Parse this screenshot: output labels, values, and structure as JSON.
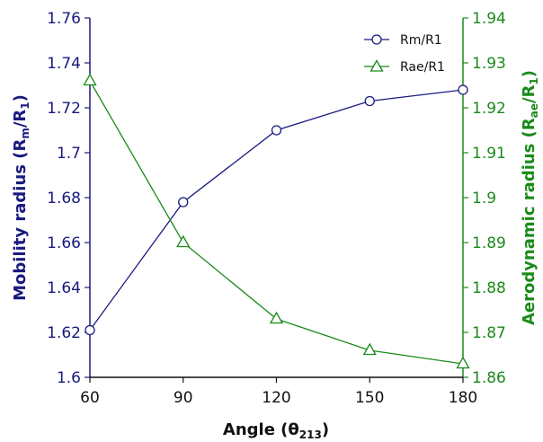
{
  "chart_data": {
    "type": "line",
    "x": [
      60,
      90,
      120,
      150,
      180
    ],
    "xlim": [
      60,
      180
    ],
    "x_ticks": [
      "60",
      "90",
      "120",
      "150",
      "180"
    ],
    "xlabel": {
      "main": "Angle (θ",
      "sub": "213",
      "end": ")"
    },
    "ylabel_left": {
      "main": "Mobility radius (R",
      "sub1": "m",
      "mid": "/R",
      "sub2": "1",
      "end": ")"
    },
    "ylabel_right": {
      "main": "Aerodynamic radius (R",
      "sub1": "ae",
      "mid": "/R",
      "sub2": "1",
      "end": ")"
    },
    "ylim_left": [
      1.6,
      1.76
    ],
    "ylim_right": [
      1.86,
      1.94
    ],
    "y_ticks_left": [
      "1.6",
      "1.62",
      "1.64",
      "1.66",
      "1.68",
      "1.7",
      "1.72",
      "1.74",
      "1.76"
    ],
    "y_ticks_right": [
      "1.86",
      "1.87",
      "1.88",
      "1.89",
      "1.9",
      "1.91",
      "1.92",
      "1.93",
      "1.94"
    ],
    "legend_position": "top-right",
    "grid": false,
    "series": [
      {
        "name": "Rm/R1",
        "axis": "left",
        "marker": "circle",
        "color": "#1a1a80",
        "values": [
          1.621,
          1.678,
          1.71,
          1.723,
          1.728
        ]
      },
      {
        "name": "Rae/R1",
        "axis": "right",
        "marker": "triangle",
        "color": "#1a8a1a",
        "values": [
          1.926,
          1.89,
          1.873,
          1.866,
          1.863
        ]
      }
    ]
  }
}
